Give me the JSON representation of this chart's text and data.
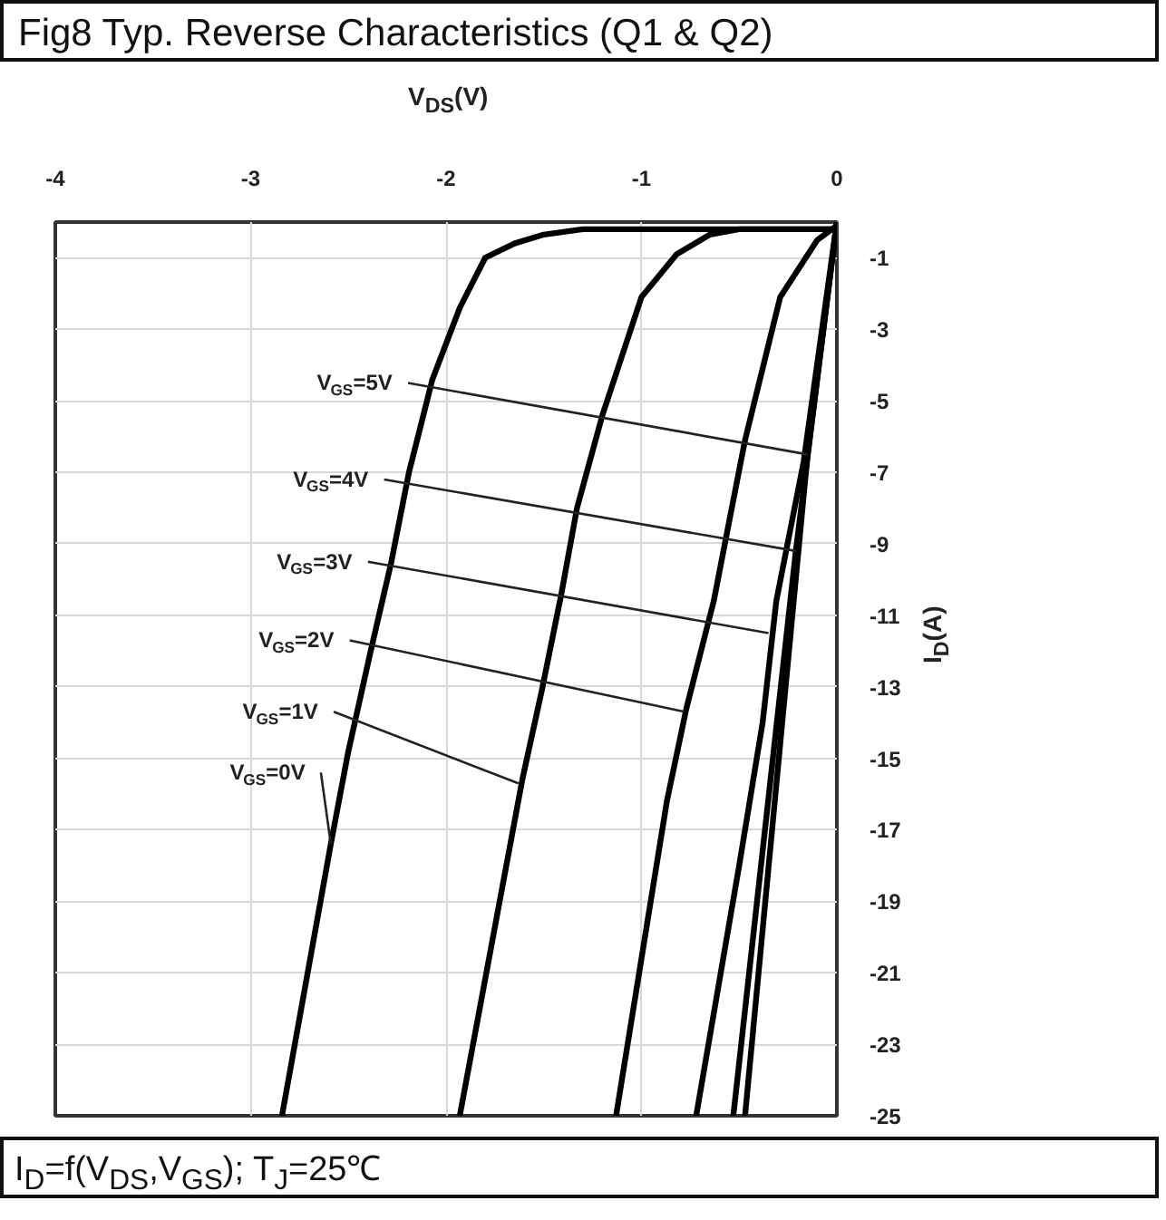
{
  "chart_data": {
    "type": "line",
    "title": "Fig8 Typ. Reverse Characteristics (Q1 & Q2)",
    "xlabel": "V$_{DS}$(V)",
    "ylabel": "I$_{D}$(A)",
    "xlim": [
      -4,
      0
    ],
    "ylim": [
      -25,
      0
    ],
    "xticks": [
      -4,
      -3,
      -2,
      -1,
      0
    ],
    "yticks": [
      -1,
      -3,
      -5,
      -7,
      -9,
      -11,
      -13,
      -15,
      -17,
      -19,
      -21,
      -23,
      -25
    ],
    "grid": true,
    "series": [
      {
        "color": "#000000",
        "x": [
          0,
          -1.3,
          -1.5,
          -1.65,
          -1.8,
          -1.93,
          -2.07,
          -2.19,
          -2.28,
          -2.39,
          -2.5,
          -2.59,
          -2.84
        ],
        "values": [
          -0.2,
          -0.2,
          -0.35,
          -0.6,
          -1.0,
          -2.4,
          -4.4,
          -7.0,
          -9.5,
          -12.1,
          -14.8,
          -17.4,
          -25
        ]
      },
      {
        "color": "#000000",
        "x": [
          0,
          -0.5,
          -0.65,
          -0.82,
          -1.0,
          -1.2,
          -1.33,
          -1.41,
          -1.51,
          -1.61,
          -1.93
        ],
        "values": [
          -0.2,
          -0.2,
          -0.35,
          -0.9,
          -2.1,
          -5.4,
          -8.0,
          -10.4,
          -13.1,
          -15.6,
          -25
        ]
      },
      {
        "color": "#000000",
        "x": [
          0,
          -0.1,
          -0.29,
          -0.47,
          -0.57,
          -0.63,
          -0.77,
          -0.87,
          -1.13
        ],
        "values": [
          -0.1,
          -0.5,
          -2.1,
          -6.1,
          -8.9,
          -10.6,
          -13.6,
          -16.2,
          -25
        ]
      },
      {
        "color": "#000000",
        "x": [
          0,
          -0.17,
          -0.31,
          -0.38,
          -0.5,
          -0.72
        ],
        "values": [
          0,
          -6.7,
          -10.6,
          -14,
          -18,
          -25
        ]
      },
      {
        "color": "#000000",
        "x": [
          0,
          -0.21,
          -0.53
        ],
        "values": [
          0,
          -9.2,
          -25
        ]
      },
      {
        "color": "#000000",
        "x": [
          0,
          -0.15,
          -0.47
        ],
        "values": [
          0,
          -6.5,
          -25
        ]
      }
    ],
    "annotations": [
      {
        "text": "V$_{GS}$=5V",
        "x": -0.15,
        "y": -6.5
      },
      {
        "text": "V$_{GS}$=4V",
        "x": -0.21,
        "y": -9.2
      },
      {
        "text": "V$_{GS}$=3V",
        "x": -0.35,
        "y": -11.5
      },
      {
        "text": "V$_{GS}$=2V",
        "x": -0.78,
        "y": -13.7
      },
      {
        "text": "V$_{GS}$=1V",
        "x": -1.63,
        "y": -15.7
      },
      {
        "text": "V$_{GS}$=0V",
        "x": -2.59,
        "y": -17.4
      },
      "I$_{D}$=f(V$_{DS}$,V$_{GS}$); T$_{J}$=25℃"
    ]
  }
}
